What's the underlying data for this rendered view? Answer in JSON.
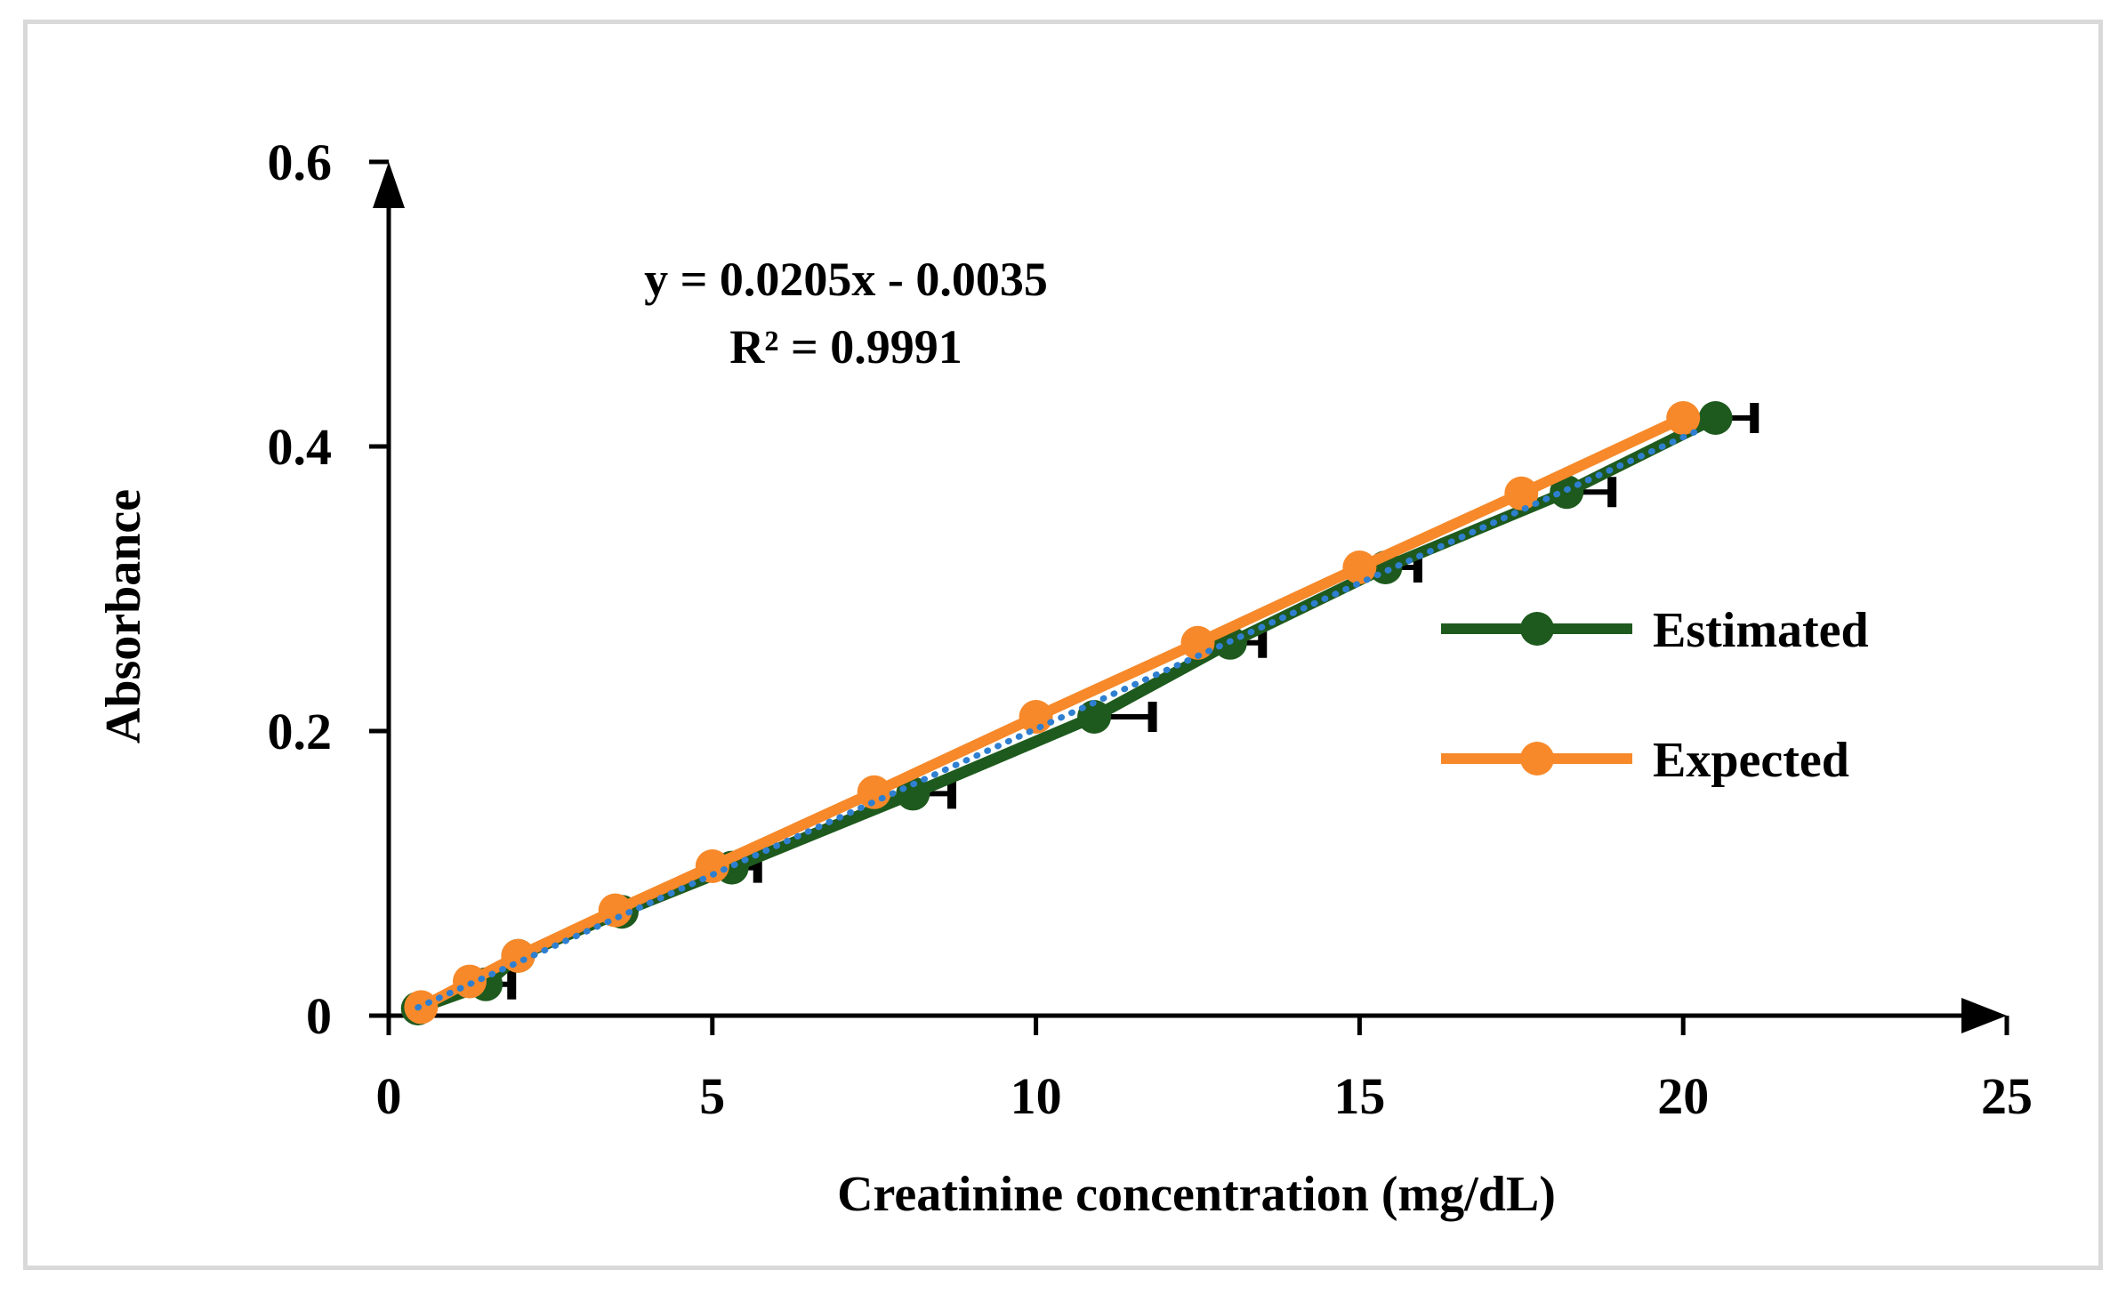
{
  "chart_data": {
    "type": "line",
    "title": "",
    "xlabel": "Creatinine concentration (mg/dL)",
    "ylabel": "Absorbance",
    "xlim": [
      0,
      25
    ],
    "ylim": [
      0,
      0.6
    ],
    "x_ticks": [
      0,
      5,
      10,
      15,
      20,
      25
    ],
    "x_tick_labels": [
      "0",
      "5",
      "10",
      "15",
      "20",
      "25"
    ],
    "y_ticks": [
      0,
      0.2,
      0.4,
      0.6
    ],
    "y_tick_labels": [
      "0",
      "0.2",
      "0.4",
      "0.6"
    ],
    "grid": false,
    "legend_position": "right",
    "series": [
      {
        "name": "Estimated",
        "color": "#1e5a1e",
        "x": [
          0.45,
          1.5,
          2.0,
          3.6,
          5.3,
          8.1,
          10.9,
          13.0,
          15.4,
          18.2,
          20.5
        ],
        "y": [
          0.005,
          0.022,
          0.042,
          0.073,
          0.104,
          0.156,
          0.21,
          0.262,
          0.315,
          0.368,
          0.42
        ],
        "x_error": [
          0.0,
          0.4,
          0.0,
          0.0,
          0.4,
          0.6,
          0.9,
          0.5,
          0.5,
          0.7,
          0.6
        ]
      },
      {
        "name": "Expected",
        "color": "#f7892a",
        "x": [
          0.5,
          1.25,
          2.0,
          3.5,
          5.0,
          7.5,
          10.0,
          12.5,
          15.0,
          17.5,
          20.0
        ],
        "y": [
          0.006,
          0.024,
          0.042,
          0.074,
          0.105,
          0.157,
          0.21,
          0.262,
          0.315,
          0.367,
          0.42
        ]
      }
    ],
    "trendline": {
      "type": "linear",
      "slope": 0.0205,
      "intercept": -0.0035,
      "color": "#2f7fd0",
      "style": "dotted",
      "x_range": [
        0.45,
        20.2
      ]
    },
    "annotations": {
      "equation": "y = 0.0205x - 0.0035",
      "r_squared": "R² = 0.9991"
    }
  }
}
